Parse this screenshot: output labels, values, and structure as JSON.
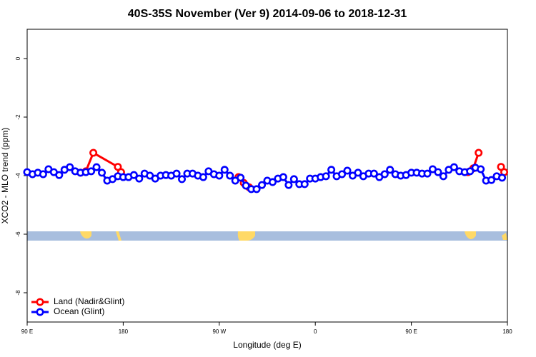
{
  "chart_data": {
    "type": "line",
    "title": "40S-35S November (Ver 9)   2014-09-06 to 2018-12-31",
    "xlabel": "Longitude (deg E)",
    "ylabel": "XCO2 - MLO trend (ppm)",
    "xlim": [
      90,
      540
    ],
    "ylim": [
      -9,
      1
    ],
    "xticks": [
      {
        "value": 90,
        "label": "90 E"
      },
      {
        "value": 180,
        "label": "180"
      },
      {
        "value": 270,
        "label": "90 W"
      },
      {
        "value": 360,
        "label": "0"
      },
      {
        "value": 450,
        "label": "90 E"
      },
      {
        "value": 540,
        "label": "180"
      }
    ],
    "yticks": [
      0,
      -2,
      -4,
      -6,
      -8
    ],
    "legend": "bottom-left",
    "series": [
      {
        "name": "Land (Nadir&Glint)",
        "color": "#ff0000",
        "x": [
          140,
          145,
          152,
          175,
          178,
          240,
          288,
          293,
          298,
          400,
          503,
          508,
          513,
          530,
          534,
          537
        ],
        "values": [
          -3.9,
          -3.85,
          -3.22,
          -3.7,
          -3.88,
          null,
          -4.05,
          -4.25,
          -4.4,
          null,
          -3.88,
          -3.75,
          -3.22,
          null,
          -3.7,
          -3.88
        ]
      },
      {
        "name": "Ocean (Glint)",
        "color": "#0000ff",
        "x": [
          90,
          95,
          100,
          105,
          110,
          115,
          120,
          125,
          130,
          135,
          140,
          145,
          150,
          155,
          160,
          165,
          170,
          175,
          180,
          185,
          190,
          195,
          200,
          205,
          210,
          215,
          220,
          225,
          230,
          235,
          240,
          245,
          250,
          255,
          260,
          265,
          270,
          275,
          280,
          285,
          290,
          295,
          300,
          305,
          310,
          315,
          320,
          325,
          330,
          335,
          340,
          345,
          350,
          355,
          360,
          365,
          370,
          375,
          380,
          385,
          390,
          395,
          400,
          405,
          410,
          415,
          420,
          425,
          430,
          435,
          440,
          445,
          450,
          455,
          460,
          465,
          470,
          475,
          480,
          485,
          490,
          495,
          500,
          505,
          510,
          515,
          520,
          525,
          530,
          535
        ],
        "values": [
          -3.88,
          -3.95,
          -3.9,
          -3.95,
          -3.78,
          -3.88,
          -3.98,
          -3.8,
          -3.71,
          -3.85,
          -3.9,
          -3.88,
          -3.85,
          -3.71,
          -3.9,
          -4.17,
          -4.12,
          -4.02,
          -4.05,
          -4.05,
          -3.98,
          -4.1,
          -3.93,
          -4,
          -4.1,
          -4,
          -3.98,
          -4,
          -3.93,
          -4.12,
          -3.93,
          -3.93,
          -4,
          -4.05,
          -3.85,
          -3.95,
          -4,
          -3.8,
          -4,
          -4.17,
          -4.07,
          -4.34,
          -4.46,
          -4.46,
          -4.32,
          -4.17,
          -4.22,
          -4.1,
          -4.05,
          -4.32,
          -4.12,
          -4.29,
          -4.29,
          -4.1,
          -4.1,
          -4.05,
          -4.02,
          -3.8,
          -4.02,
          -3.95,
          -3.83,
          -4,
          -3.9,
          -4.02,
          -3.93,
          -3.93,
          -4.05,
          -3.95,
          -3.8,
          -3.95,
          -4,
          -3.98,
          -3.9,
          -3.9,
          -3.93,
          -3.93,
          -3.78,
          -3.88,
          -4.02,
          -3.8,
          -3.71,
          -3.85,
          -3.88,
          -3.85,
          -3.73,
          -3.78,
          -4.17,
          -4.15,
          -4.02,
          -4.07
        ]
      }
    ]
  }
}
